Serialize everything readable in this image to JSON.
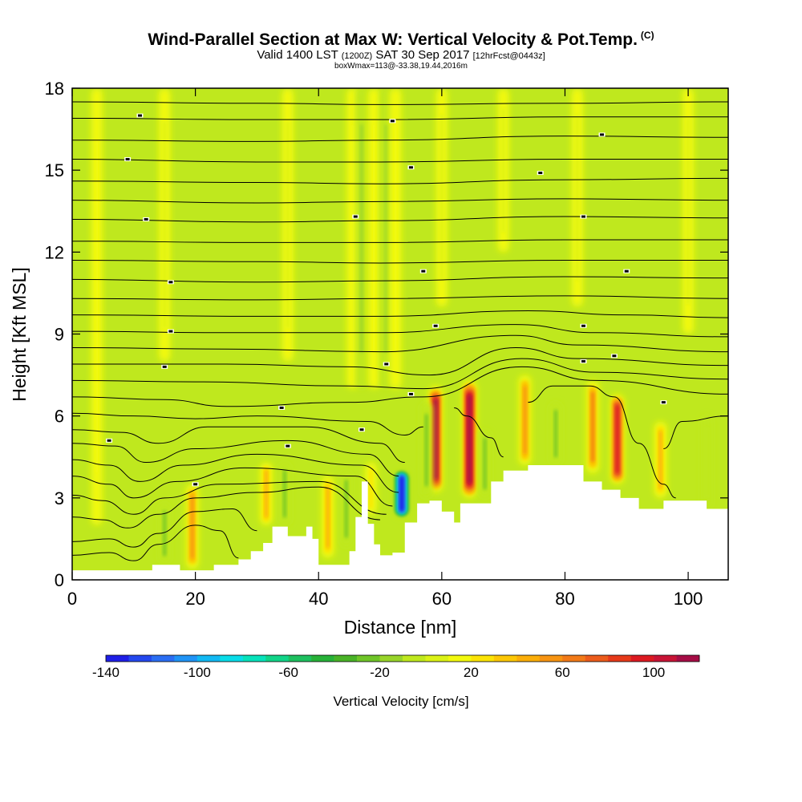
{
  "header": {
    "title": "Wind-Parallel Section at Max W: Vertical Velocity & Pot.Temp.",
    "copyright": "(C)",
    "valid_prefix": "Valid 1400 LST",
    "valid_z": "(1200Z)",
    "valid_date": "SAT 30 Sep 2017",
    "forecast": "[12hrFcst@0443z]",
    "subtitle3": "boxWmax=113@-33.38,19.44,2016m"
  },
  "chart_data": {
    "type": "heatmap",
    "xlabel": "Distance [nm]",
    "ylabel": "Height [Kft MSL]",
    "xlim": [
      0,
      106.5
    ],
    "ylim": [
      0,
      18
    ],
    "x_ticks": [
      "0",
      "20",
      "40",
      "60",
      "80",
      "100"
    ],
    "x_tick_values": [
      0,
      20,
      40,
      60,
      80,
      100
    ],
    "y_ticks": [
      "0",
      "3",
      "6",
      "9",
      "12",
      "15",
      "18"
    ],
    "y_tick_values": [
      0,
      3,
      6,
      9,
      12,
      15,
      18
    ],
    "colorbar": {
      "label": "Vertical Velocity [cm/s]",
      "min": -140,
      "max": 120,
      "step": 10,
      "tick_labels": [
        "-140",
        "-100",
        "-60",
        "-20",
        "20",
        "60",
        "100"
      ],
      "tick_values": [
        -140,
        -100,
        -60,
        -20,
        20,
        60,
        100
      ],
      "colors": [
        "#1f1fe6",
        "#2448ee",
        "#2b6ef3",
        "#2094f6",
        "#12b9f3",
        "#09dce8",
        "#07e2bb",
        "#11d488",
        "#1ec05f",
        "#27b238",
        "#49b327",
        "#6fc528",
        "#98d42a",
        "#bfe81e",
        "#dbf216",
        "#f2f90e",
        "#fbe305",
        "#fcc705",
        "#fbae09",
        "#f79412",
        "#f27a18",
        "#ec5c1c",
        "#e63a1a",
        "#dc1a21",
        "#c81436",
        "#a60d46"
      ]
    },
    "terrain_profile": [
      [
        0,
        0.35
      ],
      [
        7,
        0.35
      ],
      [
        10,
        0.35
      ],
      [
        12.5,
        0.35
      ],
      [
        13,
        0.55
      ],
      [
        17,
        0.55
      ],
      [
        17.5,
        0.35
      ],
      [
        20,
        0.35
      ],
      [
        23,
        0.55
      ],
      [
        25,
        0.55
      ],
      [
        27,
        0.75
      ],
      [
        29,
        1.05
      ],
      [
        31,
        1.35
      ],
      [
        32.5,
        1.95
      ],
      [
        34,
        1.95
      ],
      [
        35,
        1.6
      ],
      [
        37,
        1.6
      ],
      [
        38,
        1.95
      ],
      [
        39,
        1.5
      ],
      [
        40,
        0.55
      ],
      [
        45,
        1.05
      ],
      [
        46,
        2.3
      ],
      [
        47,
        3.6
      ],
      [
        48,
        2.05
      ],
      [
        49,
        1.3
      ],
      [
        50,
        0.9
      ],
      [
        52,
        1.0
      ],
      [
        54,
        2.1
      ],
      [
        56,
        2.8
      ],
      [
        58,
        2.9
      ],
      [
        60,
        2.5
      ],
      [
        62,
        2.1
      ],
      [
        63,
        2.8
      ],
      [
        66,
        2.8
      ],
      [
        68,
        3.6
      ],
      [
        70,
        4.0
      ],
      [
        74,
        4.2
      ],
      [
        80,
        4.2
      ],
      [
        83,
        3.6
      ],
      [
        86,
        3.3
      ],
      [
        89,
        3.0
      ],
      [
        92,
        2.6
      ],
      [
        96,
        2.9
      ],
      [
        101,
        2.9
      ],
      [
        103,
        2.6
      ],
      [
        106.5,
        2.6
      ]
    ],
    "w_streaks": [
      {
        "x": 59,
        "y0": 3.2,
        "y1": 7.1,
        "w": 110
      },
      {
        "x": 64.5,
        "y0": 3.0,
        "y1": 7.3,
        "w": 113
      },
      {
        "x": 73.5,
        "y0": 4.2,
        "y1": 7.5,
        "w": 50
      },
      {
        "x": 84.5,
        "y0": 3.9,
        "y1": 7.3,
        "w": 60
      },
      {
        "x": 88.5,
        "y0": 3.5,
        "y1": 6.8,
        "w": 90
      },
      {
        "x": 95.5,
        "y0": 3.0,
        "y1": 5.8,
        "w": 45
      },
      {
        "x": 19.5,
        "y0": 0.4,
        "y1": 3.5,
        "w": 50
      },
      {
        "x": 31.5,
        "y0": 2.0,
        "y1": 4.3,
        "w": 40
      },
      {
        "x": 41.5,
        "y0": 0.8,
        "y1": 3.8,
        "w": 45
      },
      {
        "x": 48.5,
        "y0": 2.4,
        "y1": 4.3,
        "w": 20
      },
      {
        "x": 53.5,
        "y0": 2.3,
        "y1": 4.0,
        "w": -140
      },
      {
        "x": 34.5,
        "y0": 2.0,
        "y1": 4.3,
        "w": -30
      },
      {
        "x": 44.5,
        "y0": 1.2,
        "y1": 4.0,
        "w": -30
      },
      {
        "x": 57.5,
        "y0": 3.0,
        "y1": 6.5,
        "w": -25
      },
      {
        "x": 67,
        "y0": 3.0,
        "y1": 5.5,
        "w": -25
      },
      {
        "x": 78.5,
        "y0": 4.2,
        "y1": 6.5,
        "w": -30
      },
      {
        "x": 103,
        "y0": 2.6,
        "y1": 6.0,
        "w": -10
      },
      {
        "x": 15,
        "y0": 0.6,
        "y1": 2.8,
        "w": -30
      },
      {
        "x": 4,
        "y0": 2.0,
        "y1": 18,
        "w": 0
      },
      {
        "x": 15,
        "y0": 8,
        "y1": 18,
        "w": 5
      },
      {
        "x": 35,
        "y0": 8,
        "y1": 18,
        "w": 5
      },
      {
        "x": 45.5,
        "y0": 7,
        "y1": 18,
        "w": 10
      },
      {
        "x": 47,
        "y0": 7,
        "y1": 18,
        "w": -15
      },
      {
        "x": 49,
        "y0": 7,
        "y1": 18,
        "w": 10
      },
      {
        "x": 51,
        "y0": 7,
        "y1": 18,
        "w": -15
      },
      {
        "x": 52.5,
        "y0": 7,
        "y1": 18,
        "w": 10
      },
      {
        "x": 60,
        "y0": 10,
        "y1": 18,
        "w": 5
      },
      {
        "x": 70,
        "y0": 12,
        "y1": 18,
        "w": 5
      },
      {
        "x": 82,
        "y0": 10,
        "y1": 18,
        "w": 5
      },
      {
        "x": 100,
        "y0": 9,
        "y1": 18,
        "w": 5
      }
    ],
    "isentropes": [
      [
        [
          0,
          17.5
        ],
        [
          30,
          17.45
        ],
        [
          50,
          17.4
        ],
        [
          80,
          17.45
        ],
        [
          106.5,
          17.5
        ]
      ],
      [
        [
          0,
          16.9
        ],
        [
          30,
          16.85
        ],
        [
          50,
          16.85
        ],
        [
          80,
          16.95
        ],
        [
          106.5,
          16.95
        ]
      ],
      [
        [
          0,
          16.1
        ],
        [
          30,
          16.05
        ],
        [
          50,
          16.1
        ],
        [
          80,
          16.25
        ],
        [
          106.5,
          16.2
        ]
      ],
      [
        [
          0,
          15.4
        ],
        [
          30,
          15.3
        ],
        [
          50,
          15.3
        ],
        [
          80,
          15.4
        ],
        [
          106.5,
          15.4
        ]
      ],
      [
        [
          0,
          14.6
        ],
        [
          30,
          14.55
        ],
        [
          50,
          14.5
        ],
        [
          80,
          14.65
        ],
        [
          106.5,
          14.7
        ]
      ],
      [
        [
          0,
          13.9
        ],
        [
          30,
          13.8
        ],
        [
          50,
          13.85
        ],
        [
          80,
          13.95
        ],
        [
          106.5,
          13.9
        ]
      ],
      [
        [
          0,
          13.2
        ],
        [
          30,
          13.1
        ],
        [
          50,
          13.15
        ],
        [
          80,
          13.3
        ],
        [
          106.5,
          13.25
        ]
      ],
      [
        [
          0,
          12.4
        ],
        [
          30,
          12.35
        ],
        [
          50,
          12.35
        ],
        [
          80,
          12.45
        ],
        [
          106.5,
          12.45
        ]
      ],
      [
        [
          0,
          11.7
        ],
        [
          30,
          11.65
        ],
        [
          50,
          11.6
        ],
        [
          80,
          11.7
        ],
        [
          106.5,
          11.7
        ]
      ],
      [
        [
          0,
          11.0
        ],
        [
          30,
          10.9
        ],
        [
          50,
          10.95
        ],
        [
          80,
          11.1
        ],
        [
          106.5,
          11.05
        ]
      ],
      [
        [
          0,
          10.3
        ],
        [
          30,
          10.25
        ],
        [
          50,
          10.3
        ],
        [
          80,
          10.4
        ],
        [
          106.5,
          10.3
        ]
      ],
      [
        [
          0,
          9.7
        ],
        [
          30,
          9.65
        ],
        [
          50,
          9.65
        ],
        [
          74,
          9.85
        ],
        [
          90,
          9.7
        ],
        [
          106.5,
          9.6
        ]
      ],
      [
        [
          0,
          9.1
        ],
        [
          25,
          9.05
        ],
        [
          50,
          9.05
        ],
        [
          72,
          9.35
        ],
        [
          85,
          9.05
        ],
        [
          106.5,
          8.9
        ]
      ],
      [
        [
          0,
          8.5
        ],
        [
          25,
          8.45
        ],
        [
          50,
          8.35
        ],
        [
          72,
          8.95
        ],
        [
          82,
          8.6
        ],
        [
          106.5,
          8.35
        ]
      ],
      [
        [
          0,
          7.9
        ],
        [
          25,
          7.9
        ],
        [
          45,
          7.8
        ],
        [
          58,
          7.5
        ],
        [
          72,
          8.5
        ],
        [
          82,
          8.1
        ],
        [
          106.5,
          7.85
        ]
      ],
      [
        [
          0,
          7.3
        ],
        [
          20,
          7.25
        ],
        [
          45,
          7.1
        ],
        [
          57,
          7.0
        ],
        [
          73,
          8.1
        ],
        [
          85,
          7.6
        ],
        [
          106.5,
          7.35
        ]
      ],
      [
        [
          0,
          6.7
        ],
        [
          15,
          6.6
        ],
        [
          25,
          6.35
        ],
        [
          45,
          6.5
        ],
        [
          57,
          6.7
        ],
        [
          73,
          7.8
        ],
        [
          85,
          7.3
        ],
        [
          106.5,
          6.8
        ]
      ],
      [
        [
          0,
          6.1
        ],
        [
          10,
          6.0
        ],
        [
          20,
          5.9
        ],
        [
          30,
          6.0
        ],
        [
          48,
          5.8
        ],
        [
          54,
          5.3
        ],
        [
          57,
          5.6
        ]
      ],
      [
        [
          0,
          5.5
        ],
        [
          8,
          5.4
        ],
        [
          14,
          5.0
        ],
        [
          22,
          5.6
        ],
        [
          38,
          5.6
        ],
        [
          50,
          5.0
        ],
        [
          54,
          4.3
        ]
      ],
      [
        [
          0,
          5.0
        ],
        [
          7,
          4.9
        ],
        [
          12,
          4.3
        ],
        [
          20,
          4.8
        ],
        [
          35,
          5.1
        ],
        [
          48,
          4.6
        ],
        [
          53,
          3.8
        ]
      ],
      [
        [
          0,
          4.4
        ],
        [
          6,
          4.2
        ],
        [
          11,
          3.6
        ],
        [
          18,
          4.2
        ],
        [
          30,
          4.6
        ],
        [
          47,
          4.2
        ],
        [
          53,
          3.2
        ]
      ],
      [
        [
          0,
          3.8
        ],
        [
          6,
          3.5
        ],
        [
          10,
          3.0
        ],
        [
          17,
          3.6
        ],
        [
          28,
          4.1
        ],
        [
          46,
          3.8
        ],
        [
          52,
          2.7
        ]
      ],
      [
        [
          0,
          3.1
        ],
        [
          5,
          2.9
        ],
        [
          10,
          2.4
        ],
        [
          15,
          3.0
        ],
        [
          24,
          3.5
        ],
        [
          40,
          3.6
        ],
        [
          51,
          2.4
        ]
      ],
      [
        [
          0,
          2.3
        ],
        [
          5,
          2.2
        ],
        [
          9,
          1.9
        ],
        [
          14,
          2.4
        ],
        [
          20,
          3.0
        ],
        [
          30,
          3.2
        ],
        [
          40,
          3.4
        ],
        [
          50,
          2.2
        ]
      ],
      [
        [
          0,
          1.4
        ],
        [
          6,
          1.5
        ],
        [
          10,
          1.2
        ],
        [
          14,
          1.7
        ],
        [
          20,
          2.5
        ],
        [
          26,
          2.6
        ],
        [
          30,
          1.8
        ]
      ],
      [
        [
          0,
          0.9
        ],
        [
          6,
          1.0
        ],
        [
          10,
          0.7
        ],
        [
          14,
          1.3
        ],
        [
          20,
          2.0
        ],
        [
          24,
          1.8
        ],
        [
          27,
          0.8
        ]
      ],
      [
        [
          62,
          6.3
        ],
        [
          64,
          6.0
        ],
        [
          68,
          5.2
        ],
        [
          70,
          4.5
        ]
      ],
      [
        [
          74,
          6.5
        ],
        [
          78,
          7.1
        ],
        [
          84,
          7.1
        ],
        [
          88,
          6.7
        ],
        [
          92,
          5.0
        ],
        [
          96,
          3.5
        ],
        [
          98,
          3.0
        ]
      ],
      [
        [
          96,
          4.8
        ],
        [
          99,
          5.8
        ],
        [
          106.5,
          6.0
        ]
      ]
    ],
    "isentrope_labels": [
      {
        "x": 11,
        "y": 17.0,
        "text": "a"
      },
      {
        "x": 52,
        "y": 16.8,
        "text": "b"
      },
      {
        "x": 86,
        "y": 16.3,
        "text": "c"
      },
      {
        "x": 9,
        "y": 15.4,
        "text": "d"
      },
      {
        "x": 55,
        "y": 15.1,
        "text": "e"
      },
      {
        "x": 76,
        "y": 14.9,
        "text": "f"
      },
      {
        "x": 12,
        "y": 13.2,
        "text": "g"
      },
      {
        "x": 46,
        "y": 13.3,
        "text": "h"
      },
      {
        "x": 83,
        "y": 13.3,
        "text": "i"
      },
      {
        "x": 16,
        "y": 10.9,
        "text": "j"
      },
      {
        "x": 57,
        "y": 11.3,
        "text": "k"
      },
      {
        "x": 90,
        "y": 11.3,
        "text": "l"
      },
      {
        "x": 16,
        "y": 9.1,
        "text": "m"
      },
      {
        "x": 59,
        "y": 9.3,
        "text": "n"
      },
      {
        "x": 83,
        "y": 9.3,
        "text": "o"
      },
      {
        "x": 15,
        "y": 7.8,
        "text": "p"
      },
      {
        "x": 51,
        "y": 7.9,
        "text": "q"
      },
      {
        "x": 88,
        "y": 8.2,
        "text": "r"
      },
      {
        "x": 34,
        "y": 6.3,
        "text": "s"
      },
      {
        "x": 55,
        "y": 6.8,
        "text": "t"
      },
      {
        "x": 83,
        "y": 8.0,
        "text": "u"
      },
      {
        "x": 6,
        "y": 5.1,
        "text": "v"
      },
      {
        "x": 47,
        "y": 5.5,
        "text": "w"
      },
      {
        "x": 35,
        "y": 4.9,
        "text": "x"
      },
      {
        "x": 20,
        "y": 3.5,
        "text": "y"
      },
      {
        "x": 96,
        "y": 6.5,
        "text": "z"
      }
    ]
  }
}
